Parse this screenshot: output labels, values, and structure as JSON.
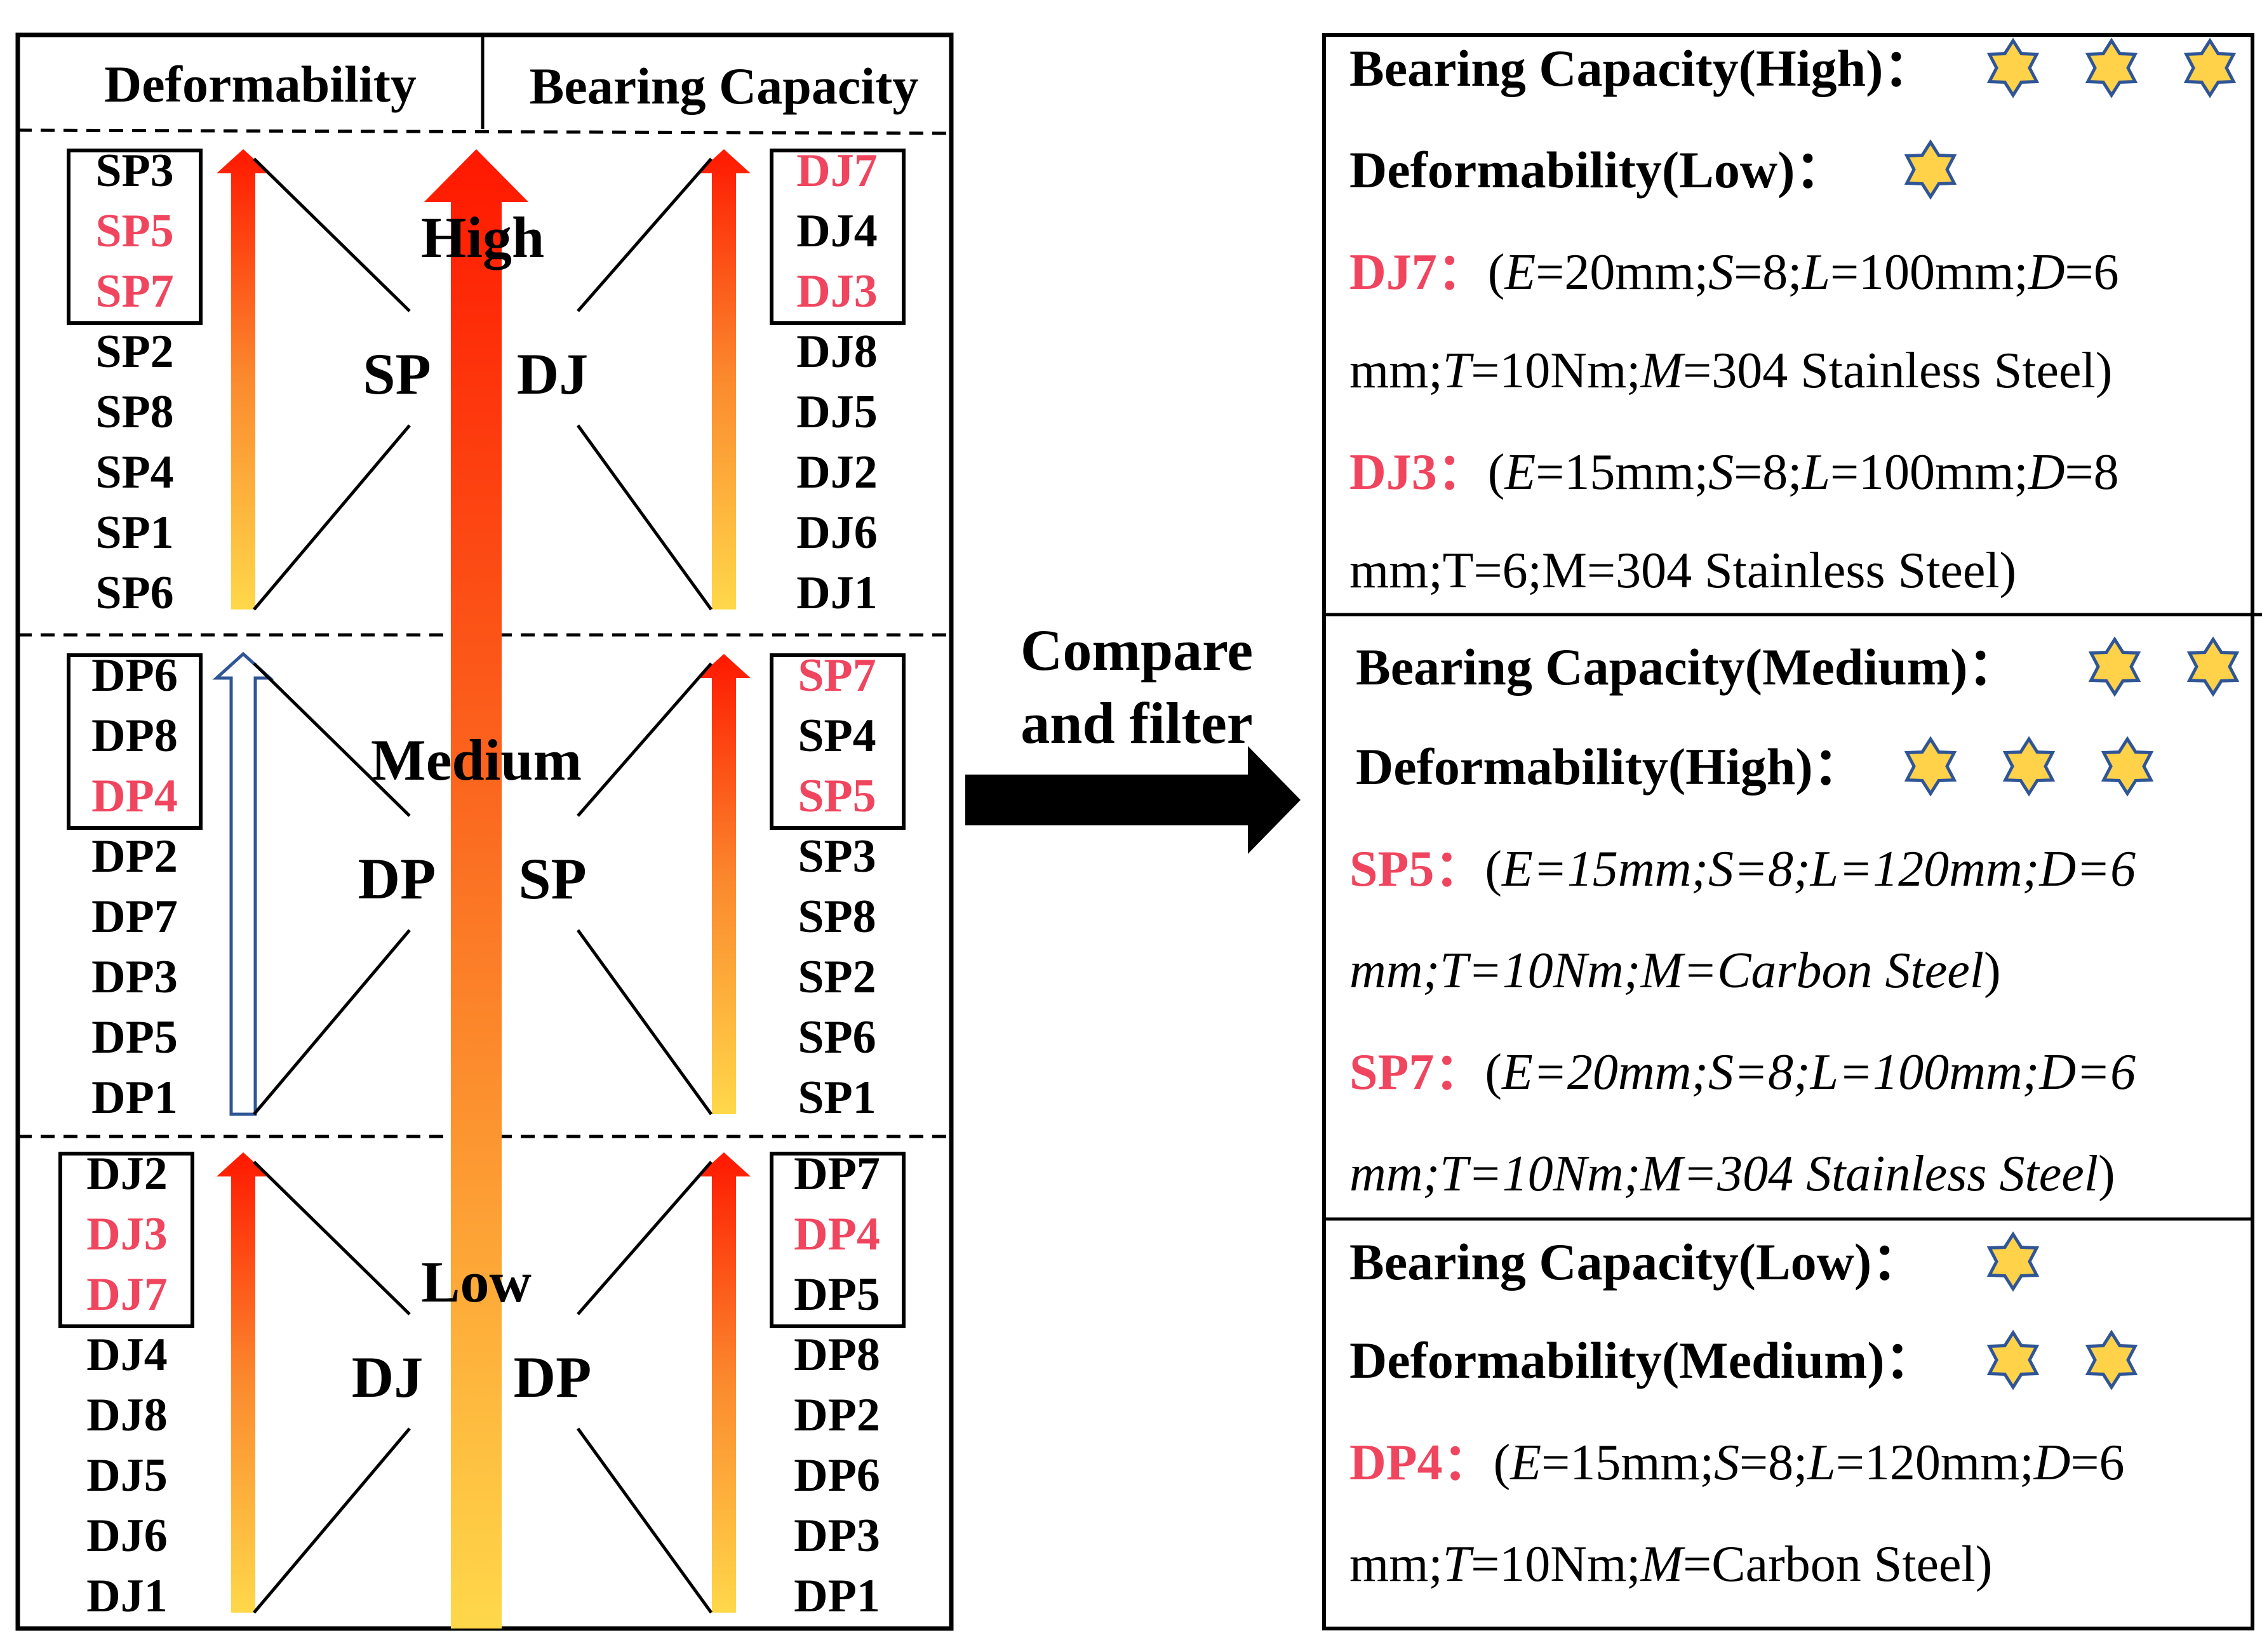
{
  "left_panel": {
    "headers": {
      "deformability": "Deformability",
      "bearing_capacity": "Bearing Capacity"
    },
    "center_arrow_labels": [
      "High",
      "Medium",
      "Low"
    ],
    "sections": [
      {
        "level": "High",
        "left_group": "SP",
        "right_group": "DJ",
        "left_items": [
          {
            "text": "SP3",
            "highlight": false
          },
          {
            "text": "SP5",
            "highlight": true
          },
          {
            "text": "SP7",
            "highlight": true
          },
          {
            "text": "SP2",
            "highlight": false
          },
          {
            "text": "SP8",
            "highlight": false
          },
          {
            "text": "SP4",
            "highlight": false
          },
          {
            "text": "SP1",
            "highlight": false
          },
          {
            "text": "SP6",
            "highlight": false
          }
        ],
        "right_items": [
          {
            "text": "DJ7",
            "highlight": true
          },
          {
            "text": "DJ4",
            "highlight": false
          },
          {
            "text": "DJ3",
            "highlight": true
          },
          {
            "text": "DJ8",
            "highlight": false
          },
          {
            "text": "DJ5",
            "highlight": false
          },
          {
            "text": "DJ2",
            "highlight": false
          },
          {
            "text": "DJ6",
            "highlight": false
          },
          {
            "text": "DJ1",
            "highlight": false
          }
        ],
        "left_arrow_style": "gradient",
        "right_arrow_style": "gradient"
      },
      {
        "level": "Medium",
        "left_group": "DP",
        "right_group": "SP",
        "left_items": [
          {
            "text": "DP6",
            "highlight": false
          },
          {
            "text": "DP8",
            "highlight": false
          },
          {
            "text": "DP4",
            "highlight": true
          },
          {
            "text": "DP2",
            "highlight": false
          },
          {
            "text": "DP7",
            "highlight": false
          },
          {
            "text": "DP3",
            "highlight": false
          },
          {
            "text": "DP5",
            "highlight": false
          },
          {
            "text": "DP1",
            "highlight": false
          }
        ],
        "right_items": [
          {
            "text": "SP7",
            "highlight": true
          },
          {
            "text": "SP4",
            "highlight": false
          },
          {
            "text": "SP5",
            "highlight": true
          },
          {
            "text": "SP3",
            "highlight": false
          },
          {
            "text": "SP8",
            "highlight": false
          },
          {
            "text": "SP2",
            "highlight": false
          },
          {
            "text": "SP6",
            "highlight": false
          },
          {
            "text": "SP1",
            "highlight": false
          }
        ],
        "left_arrow_style": "outline",
        "right_arrow_style": "gradient"
      },
      {
        "level": "Low",
        "left_group": "DJ",
        "right_group": "DP",
        "left_items": [
          {
            "text": "DJ2",
            "highlight": false
          },
          {
            "text": "DJ3",
            "highlight": true
          },
          {
            "text": "DJ7",
            "highlight": true
          },
          {
            "text": "DJ4",
            "highlight": false
          },
          {
            "text": "DJ8",
            "highlight": false
          },
          {
            "text": "DJ5",
            "highlight": false
          },
          {
            "text": "DJ6",
            "highlight": false
          },
          {
            "text": "DJ1",
            "highlight": false
          }
        ],
        "right_items": [
          {
            "text": "DP7",
            "highlight": false
          },
          {
            "text": "DP4",
            "highlight": true
          },
          {
            "text": "DP5",
            "highlight": false
          },
          {
            "text": "DP8",
            "highlight": false
          },
          {
            "text": "DP2",
            "highlight": false
          },
          {
            "text": "DP6",
            "highlight": false
          },
          {
            "text": "DP3",
            "highlight": false
          },
          {
            "text": "DP1",
            "highlight": false
          }
        ],
        "left_arrow_style": "gradient",
        "right_arrow_style": "gradient"
      }
    ]
  },
  "middle": {
    "label_line1": "Compare",
    "label_line2": "and filter"
  },
  "right_panel": {
    "sections": [
      {
        "lines": [
          {
            "label": "Bearing Capacity(High)：",
            "stars": 3
          },
          {
            "label": "Deformability(Low)：",
            "stars": 1
          }
        ],
        "specs": [
          {
            "name": "DJ7：",
            "italic": false,
            "line1": [
              [
                "(",
                false
              ],
              [
                "E",
                true
              ],
              [
                "=20mm;",
                false
              ],
              [
                "S",
                true
              ],
              [
                "=8;",
                false
              ],
              [
                "L",
                true
              ],
              [
                "=100mm;",
                false
              ],
              [
                "D",
                true
              ],
              [
                "=6",
                false
              ]
            ],
            "line2": [
              [
                "mm;",
                false
              ],
              [
                "T",
                true
              ],
              [
                "=10Nm;",
                false
              ],
              [
                "M",
                true
              ],
              [
                "=304 Stainless Steel)",
                false
              ]
            ]
          },
          {
            "name": "DJ3：",
            "italic": false,
            "line1": [
              [
                "(",
                false
              ],
              [
                "E",
                true
              ],
              [
                "=15mm;",
                false
              ],
              [
                "S",
                true
              ],
              [
                "=8;",
                false
              ],
              [
                "L",
                true
              ],
              [
                "=100mm;",
                false
              ],
              [
                "D",
                true
              ],
              [
                "=8",
                false
              ]
            ],
            "line2": [
              [
                "mm;T=6;M=304 Stainless Steel)",
                false
              ]
            ]
          }
        ]
      },
      {
        "lines": [
          {
            "label": "Bearing Capacity(Medium)：",
            "stars": 2
          },
          {
            "label": "Deformability(High)：",
            "stars": 3
          }
        ],
        "specs": [
          {
            "name": "SP5：",
            "italic": true,
            "line1": [
              [
                "(",
                false
              ],
              [
                "E=15mm;S=8;L=120mm;D=6",
                true
              ]
            ],
            "line2": [
              [
                "mm;T=10Nm;M=Carbon Steel",
                true
              ],
              [
                ")",
                false
              ]
            ]
          },
          {
            "name": "SP7：",
            "italic": true,
            "line1": [
              [
                "(",
                false
              ],
              [
                "E=20mm;S=8;L=100mm;D=6",
                true
              ]
            ],
            "line2": [
              [
                "mm;T=10Nm;M=304 Stainless Steel",
                true
              ],
              [
                ")",
                false
              ]
            ]
          }
        ]
      },
      {
        "lines": [
          {
            "label": "Bearing Capacity(Low)：",
            "stars": 1
          },
          {
            "label": "Deformability(Medium)：",
            "stars": 2
          }
        ],
        "specs": [
          {
            "name": "DP4：",
            "italic": false,
            "line1": [
              [
                "(",
                false
              ],
              [
                "E",
                true
              ],
              [
                "=15mm;",
                false
              ],
              [
                "S",
                true
              ],
              [
                "=8;",
                false
              ],
              [
                "L",
                true
              ],
              [
                "=120mm;",
                false
              ],
              [
                "D",
                true
              ],
              [
                "=6",
                false
              ]
            ],
            "line2": [
              [
                "mm;",
                false
              ],
              [
                "T",
                true
              ],
              [
                "=10Nm;",
                false
              ],
              [
                "M",
                true
              ],
              [
                "=Carbon Steel)",
                false
              ]
            ]
          }
        ]
      }
    ]
  },
  "colors": {
    "highlight": "#f0455e",
    "text": "#000000",
    "arrow_red": "#ff1800",
    "arrow_yellow": "#ffd84a",
    "star_fill": "#ffd24a",
    "star_stroke": "#2f5597",
    "outline_arrow": "#2f5597"
  }
}
